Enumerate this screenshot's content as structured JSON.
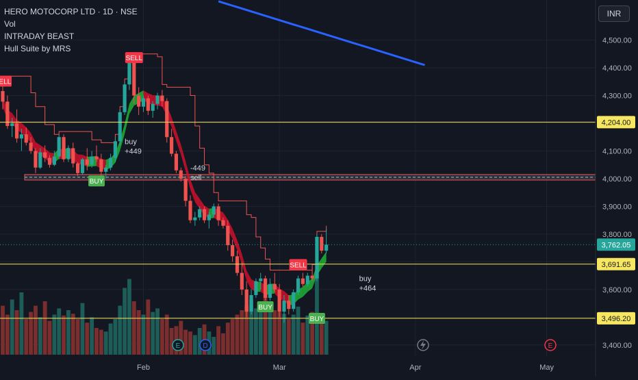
{
  "legend": {
    "symbol_title": "HERO MOTOCORP LTD · 1D · NSE",
    "indicators": [
      "Vol",
      "INTRADAY BEAST",
      "Hull Suite by MRS"
    ]
  },
  "currency_button": "INR",
  "colors": {
    "background": "#131722",
    "up": "#26a69a",
    "down": "#ef5350",
    "hull_down": "#d0112b",
    "hull_up": "#1fb336",
    "ma": "#2962ff",
    "level_line": "#f7e65f",
    "vol_up": "#1d5c57",
    "vol_down": "#7a2e2e"
  },
  "chart_data": {
    "type": "candlestick",
    "ylim": [
      3360,
      4620
    ],
    "y_ticks": [
      3400,
      3500,
      3600,
      3700,
      3800,
      3900,
      4000,
      4100,
      4200,
      4300,
      4400,
      4500
    ],
    "y_tick_labels": [
      "3,400.00",
      "3,500.00",
      "3,600.00",
      "3,700.00",
      "3,800.00",
      "3,900.00",
      "4,000.00",
      "4,100.00",
      "4,200.00",
      "4,300.00",
      "4,400.00",
      "4,500.00"
    ],
    "x_labels": [
      {
        "text": "Feb",
        "index": 30
      },
      {
        "text": "Mar",
        "index": 59
      },
      {
        "text": "Apr",
        "index": 88
      },
      {
        "text": "May",
        "index": 116
      }
    ],
    "ohlc": [
      [
        4316,
        4360,
        4250,
        4278
      ],
      [
        4278,
        4300,
        4180,
        4190
      ],
      [
        4190,
        4220,
        4150,
        4200
      ],
      [
        4200,
        4250,
        4130,
        4145
      ],
      [
        4145,
        4180,
        4100,
        4160
      ],
      [
        4160,
        4185,
        4120,
        4130
      ],
      [
        4130,
        4150,
        4090,
        4100
      ],
      [
        4100,
        4110,
        4020,
        4040
      ],
      [
        4040,
        4110,
        4035,
        4095
      ],
      [
        4095,
        4120,
        4060,
        4075
      ],
      [
        4075,
        4085,
        4040,
        4050
      ],
      [
        4050,
        4100,
        4045,
        4080
      ],
      [
        4080,
        4160,
        4070,
        4150
      ],
      [
        4150,
        4160,
        4060,
        4070
      ],
      [
        4070,
        4120,
        4060,
        4110
      ],
      [
        4110,
        4130,
        4040,
        4055
      ],
      [
        4055,
        4060,
        4010,
        4020
      ],
      [
        4020,
        4075,
        4015,
        4070
      ],
      [
        4070,
        4110,
        4030,
        4050
      ],
      [
        4050,
        4100,
        4040,
        4080
      ],
      [
        4080,
        4120,
        4060,
        4070
      ],
      [
        4070,
        4090,
        4010,
        4025
      ],
      [
        4025,
        4050,
        4000,
        4040
      ],
      [
        4040,
        4090,
        4030,
        4075
      ],
      [
        4075,
        4150,
        4060,
        4135
      ],
      [
        4135,
        4250,
        4120,
        4240
      ],
      [
        4240,
        4350,
        4230,
        4340
      ],
      [
        4340,
        4440,
        4320,
        4420
      ],
      [
        4420,
        4430,
        4270,
        4300
      ],
      [
        4300,
        4330,
        4230,
        4260
      ],
      [
        4260,
        4300,
        4240,
        4290
      ],
      [
        4290,
        4300,
        4230,
        4245
      ],
      [
        4245,
        4280,
        4220,
        4270
      ],
      [
        4270,
        4310,
        4250,
        4300
      ],
      [
        4300,
        4320,
        4260,
        4280
      ],
      [
        4280,
        4290,
        4130,
        4150
      ],
      [
        4150,
        4180,
        4080,
        4090
      ],
      [
        4090,
        4100,
        4020,
        4030
      ],
      [
        4030,
        4040,
        3990,
        4000
      ],
      [
        4000,
        4010,
        3900,
        3920
      ],
      [
        3920,
        3940,
        3840,
        3850
      ],
      [
        3850,
        3880,
        3830,
        3860
      ],
      [
        3860,
        3900,
        3850,
        3890
      ],
      [
        3890,
        3900,
        3840,
        3850
      ],
      [
        3850,
        3880,
        3820,
        3870
      ],
      [
        3870,
        3910,
        3860,
        3900
      ],
      [
        3900,
        3910,
        3830,
        3850
      ],
      [
        3850,
        3860,
        3820,
        3830
      ],
      [
        3830,
        3850,
        3740,
        3760
      ],
      [
        3760,
        3780,
        3700,
        3720
      ],
      [
        3720,
        3740,
        3650,
        3660
      ],
      [
        3660,
        3700,
        3580,
        3600
      ],
      [
        3600,
        3630,
        3500,
        3520
      ],
      [
        3520,
        3600,
        3510,
        3580
      ],
      [
        3580,
        3640,
        3570,
        3630
      ],
      [
        3630,
        3660,
        3600,
        3640
      ],
      [
        3640,
        3650,
        3560,
        3570
      ],
      [
        3570,
        3640,
        3560,
        3620
      ],
      [
        3620,
        3660,
        3590,
        3600
      ],
      [
        3600,
        3620,
        3500,
        3520
      ],
      [
        3520,
        3580,
        3480,
        3560
      ],
      [
        3560,
        3580,
        3510,
        3530
      ],
      [
        3530,
        3600,
        3520,
        3590
      ],
      [
        3590,
        3650,
        3580,
        3640
      ],
      [
        3640,
        3660,
        3610,
        3620
      ],
      [
        3620,
        3660,
        3610,
        3650
      ],
      [
        3650,
        3680,
        3630,
        3640
      ],
      [
        3640,
        3800,
        3630,
        3790
      ],
      [
        3790,
        3800,
        3730,
        3740
      ],
      [
        3740,
        3820,
        3730,
        3762
      ]
    ],
    "volume": [
      0.55,
      0.45,
      0.62,
      0.5,
      0.7,
      0.4,
      0.48,
      0.55,
      0.42,
      0.6,
      0.38,
      0.45,
      0.52,
      0.44,
      0.5,
      0.46,
      0.4,
      0.58,
      0.36,
      0.42,
      0.3,
      0.28,
      0.26,
      0.35,
      0.4,
      0.55,
      0.75,
      0.85,
      0.6,
      0.5,
      0.45,
      0.62,
      0.48,
      0.52,
      0.4,
      0.45,
      0.3,
      0.32,
      0.38,
      0.28,
      0.26,
      0.22,
      0.3,
      0.34,
      0.26,
      0.2,
      0.32,
      0.24,
      0.36,
      0.4,
      0.45,
      0.5,
      0.55,
      0.62,
      0.52,
      0.6,
      0.68,
      0.58,
      0.5,
      0.48,
      0.46,
      0.4,
      0.45,
      0.54,
      0.36,
      0.44,
      0.48,
      0.95,
      0.42,
      0.38
    ],
    "ma_label": "blue moving average",
    "levels": [
      {
        "value": 4204.0,
        "label": "4,204.00"
      },
      {
        "value": 3691.65,
        "label": "3,691.65"
      },
      {
        "value": 3496.2,
        "label": "3,496.20"
      }
    ],
    "last_price": {
      "value": 3762.05,
      "label": "3,762.05"
    },
    "box_zone": [
      3995,
      4015
    ],
    "signals": [
      {
        "text": "SELL",
        "kind": "sell",
        "index": 0,
        "value": 4352
      },
      {
        "text": "SELL",
        "kind": "sell",
        "index": 28,
        "value": 4437
      },
      {
        "text": "BUY",
        "kind": "buy",
        "index": 20,
        "value": 3992
      },
      {
        "text": "SELL",
        "kind": "sell",
        "index": 63,
        "value": 3690
      },
      {
        "text": "BUY",
        "kind": "buy",
        "index": 56,
        "value": 3538
      },
      {
        "text": "BUY",
        "kind": "buy",
        "index": 67,
        "value": 3496
      }
    ],
    "annotations": [
      {
        "lines": [
          "buy",
          "+449"
        ],
        "index": 26,
        "value": 4125
      },
      {
        "lines": [
          "-449",
          "sell"
        ],
        "index": 40,
        "value": 4030
      },
      {
        "lines": [
          "buy",
          "+464"
        ],
        "index": 76,
        "value": 3630
      }
    ],
    "event_icons": [
      "E",
      "D",
      "E"
    ]
  }
}
